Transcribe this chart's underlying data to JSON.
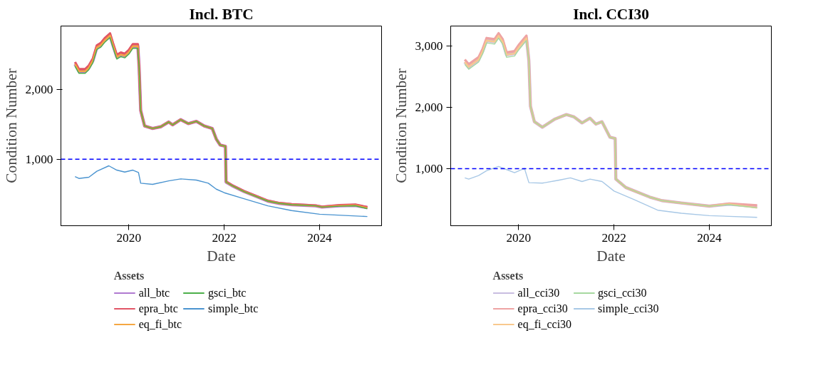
{
  "chart_data": [
    {
      "type": "line",
      "title": "Incl. BTC",
      "xlabel": "Date",
      "ylabel": "Condition Number",
      "legend_title": "Assets",
      "legend": "bottom",
      "grid": false,
      "line_style": "solid",
      "xlim": [
        "2018-07-30",
        "2025-04-20"
      ],
      "xticks": [
        "2020",
        "2022",
        "2024"
      ],
      "ylim": [
        40,
        2920
      ],
      "yticks": [
        {
          "value": 1000,
          "label": "1,000"
        },
        {
          "value": 2000,
          "label": "2,000"
        }
      ],
      "ref_lines": [
        {
          "axis": "y",
          "value": 1000,
          "color": "#0000ff",
          "line_style": "dashed"
        }
      ],
      "x": [
        "2018-11-15",
        "2018-12-15",
        "2019-02-01",
        "2019-03-01",
        "2019-04-01",
        "2019-05-01",
        "2019-06-01",
        "2019-07-01",
        "2019-08-10",
        "2019-09-01",
        "2019-10-01",
        "2019-11-01",
        "2019-12-01",
        "2020-01-01",
        "2020-02-01",
        "2020-03-10",
        "2020-03-20",
        "2020-04-01",
        "2020-05-01",
        "2020-07-01",
        "2020-09-01",
        "2020-11-01",
        "2020-12-01",
        "2021-02-01",
        "2021-04-01",
        "2021-06-01",
        "2021-08-01",
        "2021-10-01",
        "2021-11-01",
        "2021-12-01",
        "2022-01-10",
        "2022-01-15",
        "2022-03-01",
        "2022-06-01",
        "2022-09-01",
        "2022-12-01",
        "2023-03-01",
        "2023-06-01",
        "2023-12-01",
        "2024-01-20",
        "2024-06-01",
        "2024-10-01",
        "2025-01-01"
      ],
      "series": [
        {
          "name": "all_btc",
          "color": "#b07ad0",
          "values": [
            2371,
            2268,
            2268,
            2320,
            2422,
            2611,
            2646,
            2715,
            2783,
            2646,
            2474,
            2508,
            2491,
            2543,
            2629,
            2629,
            2320,
            1701,
            1478,
            1443,
            1467,
            1536,
            1495,
            1570,
            1512,
            1546,
            1478,
            1443,
            1289,
            1203,
            1186,
            670,
            619,
            533,
            464,
            395,
            361,
            344,
            327,
            309,
            327,
            333,
            300
          ]
        },
        {
          "name": "epra_btc",
          "color": "#e15566",
          "values": [
            2401,
            2298,
            2298,
            2350,
            2452,
            2641,
            2676,
            2745,
            2813,
            2676,
            2504,
            2538,
            2521,
            2573,
            2659,
            2659,
            2320,
            1701,
            1478,
            1443,
            1467,
            1536,
            1495,
            1570,
            1512,
            1546,
            1478,
            1443,
            1289,
            1203,
            1186,
            675,
            624,
            538,
            469,
            400,
            366,
            349,
            332,
            314,
            337,
            343,
            309
          ]
        },
        {
          "name": "eq_fi_btc",
          "color": "#f5a742",
          "values": [
            2371,
            2268,
            2268,
            2320,
            2422,
            2611,
            2646,
            2715,
            2783,
            2646,
            2474,
            2508,
            2491,
            2543,
            2629,
            2629,
            2320,
            1701,
            1478,
            1443,
            1467,
            1536,
            1495,
            1570,
            1512,
            1546,
            1478,
            1443,
            1289,
            1203,
            1186,
            670,
            619,
            533,
            464,
            395,
            361,
            344,
            327,
            309,
            327,
            333,
            295
          ]
        },
        {
          "name": "gsci_btc",
          "color": "#4daf4a",
          "values": [
            2341,
            2238,
            2238,
            2290,
            2392,
            2581,
            2616,
            2685,
            2753,
            2616,
            2444,
            2478,
            2461,
            2513,
            2599,
            2599,
            2320,
            1701,
            1478,
            1443,
            1467,
            1536,
            1495,
            1570,
            1512,
            1546,
            1478,
            1443,
            1289,
            1203,
            1186,
            670,
            619,
            533,
            464,
            395,
            361,
            344,
            327,
            309,
            322,
            328,
            287
          ]
        },
        {
          "name": "simple_btc",
          "color": "#4b94d0",
          "x": [
            "2018-11-15",
            "2018-12-15",
            "2019-03-01",
            "2019-05-01",
            "2019-08-01",
            "2019-10-01",
            "2019-12-01",
            "2020-02-01",
            "2020-03-15",
            "2020-04-01",
            "2020-07-01",
            "2020-11-01",
            "2021-02-01",
            "2021-06-01",
            "2021-09-01",
            "2021-11-01",
            "2022-01-01",
            "2022-06-01",
            "2022-12-01",
            "2023-06-01",
            "2024-01-01",
            "2025-01-01"
          ],
          "values": [
            749,
            722,
            739,
            825,
            904,
            842,
            814,
            842,
            808,
            653,
            636,
            687,
            715,
            698,
            653,
            567,
            516,
            430,
            327,
            258,
            206,
            172
          ]
        }
      ]
    },
    {
      "type": "line",
      "title": "Incl. CCI30",
      "xlabel": "Date",
      "ylabel": "Condition Number",
      "legend_title": "Assets",
      "legend": "bottom",
      "grid": false,
      "line_style": "solid",
      "xlim": [
        "2018-07-30",
        "2025-04-20"
      ],
      "xticks": [
        "2020",
        "2022",
        "2024"
      ],
      "ylim": [
        66,
        3330
      ],
      "yticks": [
        {
          "value": 1000,
          "label": "1,000"
        },
        {
          "value": 2000,
          "label": "2,000"
        },
        {
          "value": 3000,
          "label": "3,000"
        }
      ],
      "ref_lines": [
        {
          "axis": "y",
          "value": 1000,
          "color": "#0000ff",
          "line_style": "dashed"
        }
      ],
      "x": [
        "2018-11-15",
        "2018-12-15",
        "2019-03-01",
        "2019-04-01",
        "2019-05-01",
        "2019-07-01",
        "2019-08-01",
        "2019-09-01",
        "2019-10-01",
        "2019-12-01",
        "2020-01-01",
        "2020-03-01",
        "2020-03-20",
        "2020-04-01",
        "2020-05-01",
        "2020-07-01",
        "2020-10-01",
        "2021-01-01",
        "2021-03-01",
        "2021-05-01",
        "2021-07-01",
        "2021-08-15",
        "2021-10-01",
        "2021-12-01",
        "2022-01-10",
        "2022-01-15",
        "2022-04-01",
        "2022-07-01",
        "2022-10-01",
        "2023-01-01",
        "2023-06-01",
        "2024-01-01",
        "2024-06-01",
        "2025-01-01"
      ],
      "series": [
        {
          "name": "all_cci30",
          "color": "#c8bde0",
          "values": [
            2742,
            2664,
            2781,
            2918,
            3094,
            3074,
            3172,
            3074,
            2859,
            2879,
            2977,
            3133,
            2762,
            2019,
            1766,
            1676,
            1805,
            1883,
            1844,
            1746,
            1824,
            1727,
            1766,
            1512,
            1492,
            828,
            691,
            613,
            535,
            477,
            438,
            387,
            418,
            380
          ]
        },
        {
          "name": "epra_cci30",
          "color": "#eea3a3",
          "values": [
            2782,
            2704,
            2821,
            2958,
            3134,
            3114,
            3212,
            3114,
            2899,
            2919,
            3017,
            3173,
            2762,
            2019,
            1766,
            1676,
            1805,
            1883,
            1844,
            1746,
            1824,
            1727,
            1766,
            1512,
            1492,
            828,
            691,
            613,
            535,
            477,
            438,
            387,
            428,
            398
          ]
        },
        {
          "name": "eq_fi_cci30",
          "color": "#f8c98e",
          "values": [
            2742,
            2664,
            2781,
            2918,
            3094,
            3074,
            3172,
            3074,
            2859,
            2879,
            2977,
            3133,
            2762,
            2019,
            1766,
            1676,
            1805,
            1883,
            1844,
            1746,
            1824,
            1727,
            1766,
            1512,
            1492,
            828,
            691,
            613,
            535,
            477,
            438,
            387,
            418,
            359
          ]
        },
        {
          "name": "gsci_cci30",
          "color": "#a6d8a0",
          "values": [
            2702,
            2624,
            2741,
            2878,
            3054,
            3034,
            3132,
            3034,
            2819,
            2839,
            2937,
            3093,
            2762,
            2019,
            1766,
            1676,
            1805,
            1883,
            1844,
            1746,
            1824,
            1727,
            1766,
            1512,
            1492,
            828,
            691,
            613,
            535,
            477,
            438,
            387,
            410,
            359
          ]
        },
        {
          "name": "simple_cci30",
          "color": "#a8c8e6",
          "x": [
            "2018-11-15",
            "2018-12-15",
            "2019-03-01",
            "2019-05-01",
            "2019-08-01",
            "2019-10-01",
            "2019-12-01",
            "2020-02-15",
            "2020-03-20",
            "2020-07-01",
            "2020-11-01",
            "2021-02-01",
            "2021-05-01",
            "2021-07-01",
            "2021-10-01",
            "2022-01-01",
            "2022-06-01",
            "2022-12-01",
            "2023-06-01",
            "2024-01-01",
            "2025-01-01"
          ],
          "values": [
            848,
            828,
            887,
            965,
            1035,
            984,
            934,
            1004,
            770,
            762,
            809,
            848,
            789,
            828,
            789,
            633,
            496,
            320,
            270,
            231,
            203
          ]
        }
      ]
    }
  ]
}
